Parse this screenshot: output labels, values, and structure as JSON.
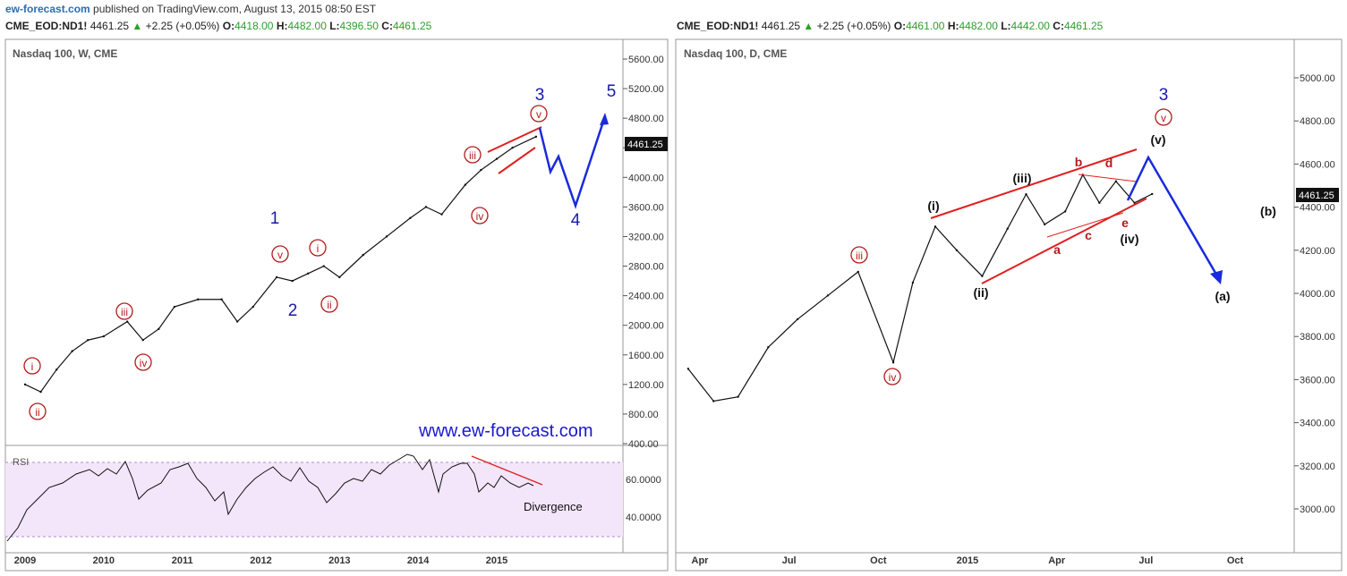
{
  "header": {
    "site": "ew-forecast.com",
    "published": " published on TradingView.com, August 13, 2015 08:50 EST"
  },
  "left_quote": {
    "symbol": "CME_EOD:ND1!",
    "last": "4461.25",
    "change": "+2.25 (+0.05%)",
    "o": "4418.00",
    "h": "4482.00",
    "l": "4396.50",
    "c": "4461.25"
  },
  "right_quote": {
    "symbol": "CME_EOD:ND1!",
    "last": "4461.25",
    "change": "+2.25 (+0.05%)",
    "o": "4461.00",
    "h": "4482.00",
    "l": "4442.00",
    "c": "4461.25"
  },
  "colors": {
    "wave_blue": "#1a1aaa",
    "subwave_red": "#b31b1b",
    "trend_red": "#e02020",
    "up": "#2ca02c",
    "rsi_bg": "#f3e6fb"
  },
  "chart_data": [
    {
      "type": "line",
      "title": "Nasdaq 100, W, CME",
      "price_label": "4461.25",
      "ylim": [
        400,
        5800
      ],
      "yticks": [
        "5600.00",
        "5200.00",
        "4800.00",
        "4400.00",
        "4000.00",
        "3600.00",
        "3200.00",
        "2800.00",
        "2400.00",
        "2000.00",
        "1600.00",
        "1200.00",
        "800.00",
        "400.00"
      ],
      "xticks": [
        "2009",
        "2010",
        "2011",
        "2012",
        "2013",
        "2014",
        "2015"
      ],
      "series": [
        {
          "x": [
            2009.0,
            2009.2,
            2009.4,
            2009.6,
            2009.8,
            2010.0,
            2010.3,
            2010.5,
            2010.7,
            2010.9,
            2011.2,
            2011.5,
            2011.7,
            2011.9,
            2012.2,
            2012.4,
            2012.6,
            2012.8,
            2013.0,
            2013.3,
            2013.6,
            2013.9,
            2014.1,
            2014.3,
            2014.6,
            2014.8,
            2015.0,
            2015.2,
            2015.5
          ],
          "values": [
            1200,
            1100,
            1400,
            1650,
            1800,
            1850,
            2050,
            1800,
            1950,
            2250,
            2350,
            2350,
            2050,
            2250,
            2650,
            2600,
            2700,
            2800,
            2650,
            2950,
            3200,
            3450,
            3600,
            3500,
            3900,
            4100,
            4250,
            4400,
            4550
          ]
        }
      ],
      "wave_labels": [
        "1",
        "2",
        "3",
        "4",
        "5",
        "i",
        "ii",
        "iii",
        "iv",
        "v",
        "i",
        "ii",
        "iii",
        "iv",
        "v"
      ],
      "watermark": "www.ew-forecast.com",
      "rsi": {
        "label": "RSI",
        "yticks": [
          "60.0000",
          "40.0000"
        ],
        "annotation": "Divergence"
      }
    },
    {
      "type": "line",
      "title": "Nasdaq 100, D, CME",
      "price_label": "4461.25",
      "ylim": [
        2850,
        5200
      ],
      "yticks": [
        "5000.00",
        "4800.00",
        "4600.00",
        "4400.00",
        "4200.00",
        "4000.00",
        "3800.00",
        "3600.00",
        "3400.00",
        "3200.00",
        "3000.00"
      ],
      "xticks": [
        "Apr",
        "Jul",
        "Oct",
        "2015",
        "Apr",
        "Jul",
        "Oct"
      ],
      "series": [
        {
          "x": [
            "2014-03-20",
            "2014-04-15",
            "2014-05-10",
            "2014-06-10",
            "2014-07-10",
            "2014-08-10",
            "2014-09-10",
            "2014-10-16",
            "2014-11-05",
            "2014-11-28",
            "2014-12-20",
            "2015-01-15",
            "2015-02-10",
            "2015-03-01",
            "2015-03-20",
            "2015-04-10",
            "2015-04-28",
            "2015-05-15",
            "2015-06-01",
            "2015-06-20",
            "2015-07-08"
          ],
          "values": [
            3650,
            3500,
            3520,
            3750,
            3880,
            3990,
            4100,
            3680,
            4050,
            4310,
            4200,
            4080,
            4300,
            4460,
            4320,
            4380,
            4550,
            4420,
            4520,
            4420,
            4461
          ]
        }
      ],
      "wave_labels": [
        "3",
        "v",
        "(v)",
        "(b)",
        "(a)",
        "(i)",
        "(ii)",
        "(iii)",
        "(iv)",
        "iii",
        "iv",
        "a",
        "b",
        "c",
        "d",
        "e"
      ]
    }
  ]
}
